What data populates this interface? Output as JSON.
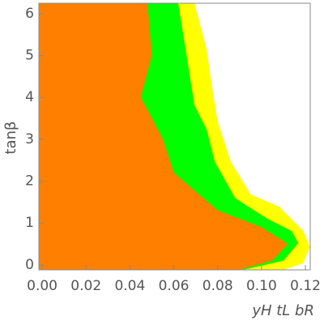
{
  "chart_data": {
    "type": "region",
    "x_label": "yH tL bR",
    "y_label": "tanβ",
    "series": [
      {
        "color": "#ffff00",
        "x": [
          -0.0015,
          0.0694,
          0.075,
          0.0776,
          0.08,
          0.086,
          0.095,
          0.108,
          0.119,
          0.122,
          0.119,
          0.11,
          -0.0015
        ],
        "values": [
          6.25,
          6.25,
          5.14,
          4.18,
          3.42,
          2.46,
          1.68,
          1.39,
          0.81,
          0.43,
          0.04,
          -0.12,
          -0.12
        ]
      },
      {
        "color": "#00ff00",
        "x": [
          -0.0015,
          0.062,
          0.0665,
          0.0694,
          0.075,
          0.0787,
          0.088,
          0.1027,
          0.1137,
          0.1167,
          0.11,
          0.0916,
          -0.0015
        ],
        "values": [
          6.25,
          6.25,
          4.78,
          3.81,
          3.23,
          2.46,
          1.59,
          1.1,
          0.81,
          0.52,
          0.1,
          -0.12,
          -0.12
        ]
      },
      {
        "color": "#ff7f00",
        "x": [
          -0.0015,
          0.048,
          0.05,
          0.045,
          0.055,
          0.06,
          0.08,
          0.1,
          0.112,
          0.105,
          0.09,
          -0.0015
        ],
        "values": [
          6.25,
          6.25,
          5.0,
          4.0,
          3.0,
          2.2,
          1.3,
          0.9,
          0.5,
          0.1,
          -0.12,
          -0.12
        ]
      }
    ],
    "xlim": [
      -0.0015,
      0.1222
    ],
    "ylim": [
      -0.12,
      6.25
    ],
    "xticks": [
      {
        "value": 0,
        "label": "0.00"
      },
      {
        "value": 0.02,
        "label": "0.02"
      },
      {
        "value": 0.04,
        "label": "0.04"
      },
      {
        "value": 0.06,
        "label": "0.06"
      },
      {
        "value": 0.08,
        "label": "0.08"
      },
      {
        "value": 0.1,
        "label": "0.10"
      },
      {
        "value": 0.12,
        "label": "0.12"
      }
    ],
    "yticks": [
      0,
      1,
      2,
      3,
      4,
      5,
      6
    ]
  }
}
